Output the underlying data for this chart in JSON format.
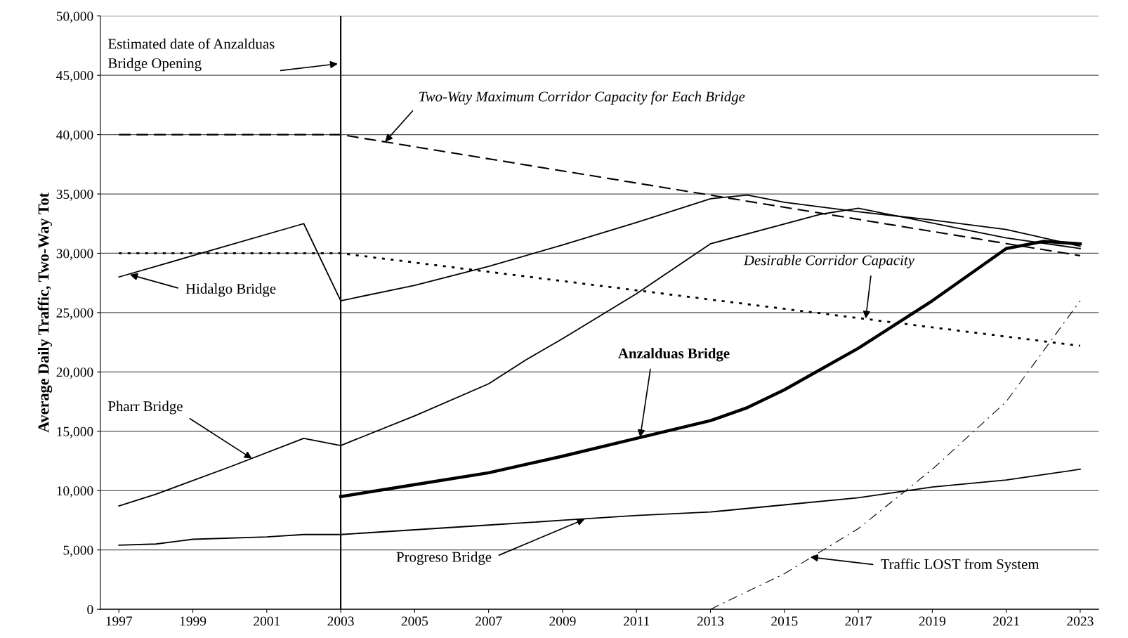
{
  "chart_data": {
    "type": "line",
    "ylabel": "Average Daily Traffic, Two-Way Tot",
    "xlim": [
      1996.5,
      2023.5
    ],
    "xticks": [
      1997,
      1999,
      2001,
      2003,
      2005,
      2007,
      2009,
      2011,
      2013,
      2015,
      2017,
      2019,
      2021,
      2023
    ],
    "ylim": [
      0,
      50000
    ],
    "yticks": [
      0,
      {
        "value": 5000,
        "label": "5,000"
      },
      {
        "value": 10000,
        "label": "10,000"
      },
      {
        "value": 15000,
        "label": "15,000"
      },
      {
        "value": 20000,
        "label": "20,000"
      },
      {
        "value": 25000,
        "label": "25,000"
      },
      {
        "value": 30000,
        "label": "30,000"
      },
      {
        "value": 35000,
        "label": "35,000"
      },
      {
        "value": 40000,
        "label": "40,000"
      },
      {
        "value": 45000,
        "label": "45,000"
      },
      {
        "value": 50000,
        "label": "50,000"
      }
    ],
    "grid": "y",
    "legend": false,
    "marker": "none",
    "series": [
      {
        "color": "#000000",
        "line_style": "solid",
        "x": [
          1997,
          2002,
          2003,
          2005,
          2007,
          2009,
          2011,
          2013,
          2014,
          2015,
          2017,
          2019,
          2021,
          2023
        ],
        "values": [
          28000,
          32500,
          26000,
          27300,
          28900,
          30700,
          32600,
          34600,
          34900,
          34300,
          33500,
          32800,
          32000,
          30600
        ]
      },
      {
        "color": "#000000",
        "line_style": "solid",
        "x": [
          1997,
          1998,
          2000,
          2002,
          2003,
          2005,
          2007,
          2008,
          2009,
          2011,
          2013,
          2016,
          2017,
          2021,
          2023
        ],
        "values": [
          8700,
          9700,
          12000,
          14400,
          13800,
          16300,
          19000,
          21000,
          22800,
          26600,
          30800,
          33300,
          33800,
          31300,
          30400
        ]
      },
      {
        "color": "#000000",
        "line_style": "solid",
        "x": [
          2003,
          2005,
          2007,
          2009,
          2011,
          2013,
          2014,
          2015,
          2017,
          2019,
          2021,
          2022,
          2023
        ],
        "values": [
          9500,
          10500,
          11500,
          12900,
          14400,
          15900,
          17000,
          18500,
          22000,
          26000,
          30400,
          31000,
          30800
        ]
      },
      {
        "color": "#000000",
        "line_style": "solid",
        "x": [
          1997,
          1998,
          1999,
          2001,
          2002,
          2003,
          2005,
          2007,
          2009,
          2011,
          2013,
          2015,
          2017,
          2019,
          2021,
          2023
        ],
        "values": [
          5400,
          5500,
          5900,
          6100,
          6300,
          6300,
          6700,
          7100,
          7500,
          7900,
          8200,
          8800,
          9400,
          10300,
          10900,
          11800
        ]
      },
      {
        "color": "#000000",
        "line_style": "dashed",
        "x": [
          1997,
          2003,
          2023
        ],
        "values": [
          40000,
          40000,
          29800
        ]
      },
      {
        "color": "#000000",
        "line_style": "dotted",
        "x": [
          1997,
          2003,
          2023
        ],
        "values": [
          30000,
          30000,
          22200
        ]
      },
      {
        "color": "#000000",
        "line_style": "dashdot",
        "x": [
          2013,
          2015,
          2017,
          2019,
          2021,
          2023
        ],
        "values": [
          0,
          3000,
          6800,
          11800,
          17500,
          26000
        ]
      }
    ],
    "annotations": [
      {
        "text": "Hidalgo Bridge",
        "x": 1997.3,
        "y": 28200
      },
      {
        "text": "Pharr Bridge",
        "x": 2000.6,
        "y": 12700
      },
      {
        "text": "Anzalduas Bridge",
        "x": 2011.1,
        "y": 14500
      },
      {
        "text": "Progreso Bridge",
        "x": 2009.6,
        "y": 7600
      },
      {
        "text": "Two-Way Maximum Corridor Capacity for Each Bridge",
        "x": 2004.2,
        "y": 39400
      },
      {
        "text": "Desirable Corridor Capacity",
        "x": 2017.2,
        "y": 24500
      },
      {
        "text": "Traffic LOST from System",
        "x": 2015.7,
        "y": 4400
      }
    ],
    "ref_lines": [
      {
        "axis": "x",
        "value": 2003,
        "label": "Estimated date of Anzalduas\nBridge Opening",
        "color": "#000000",
        "line_style": "solid"
      }
    ]
  }
}
